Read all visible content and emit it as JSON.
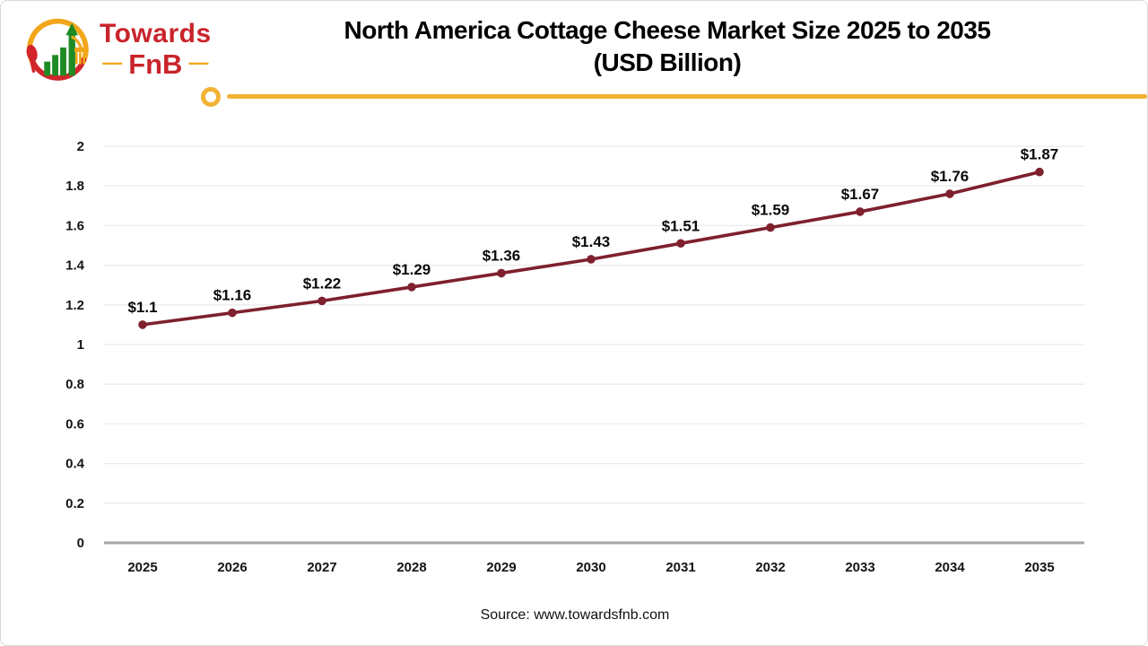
{
  "logo": {
    "brand_line1": "Towards",
    "brand_line2": "FnB",
    "left_dash": "—",
    "right_dash": "—"
  },
  "title": {
    "line1": "North America Cottage Cheese Market Size 2025 to 2035",
    "line2": "(USD Billion)"
  },
  "source": "Source: www.towardsfnb.com",
  "colors": {
    "accent_yellow": "#f2b233",
    "series_line": "#7e202e",
    "logo_red": "#c9242b",
    "logo_green": "#1f8b24",
    "gridline": "#ebebeb",
    "axis_line": "#a6a6a6"
  },
  "chart_data": {
    "type": "line",
    "title": "North America Cottage Cheese Market Size 2025 to 2035 (USD Billion)",
    "categories": [
      "2025",
      "2026",
      "2027",
      "2028",
      "2029",
      "2030",
      "2031",
      "2032",
      "2033",
      "2034",
      "2035"
    ],
    "values": [
      1.1,
      1.16,
      1.22,
      1.29,
      1.36,
      1.43,
      1.51,
      1.59,
      1.67,
      1.76,
      1.87
    ],
    "data_labels": [
      "$1.1",
      "$1.16",
      "$1.22",
      "$1.29",
      "$1.36",
      "$1.43",
      "$1.51",
      "$1.59",
      "$1.67",
      "$1.76",
      "$1.87"
    ],
    "xlabel": "",
    "ylabel": "",
    "ylim": [
      0,
      2
    ],
    "y_ticks": [
      0,
      0.2,
      0.4,
      0.6,
      0.8,
      1,
      1.2,
      1.4,
      1.6,
      1.8,
      2
    ],
    "y_tick_labels": [
      "0",
      "0.2",
      "0.4",
      "0.6",
      "0.8",
      "1",
      "1.2",
      "1.4",
      "1.6",
      "1.8",
      "2"
    ],
    "grid": "horizontal",
    "legend": "none",
    "line_color": "#7e202e",
    "marker": "circle"
  }
}
